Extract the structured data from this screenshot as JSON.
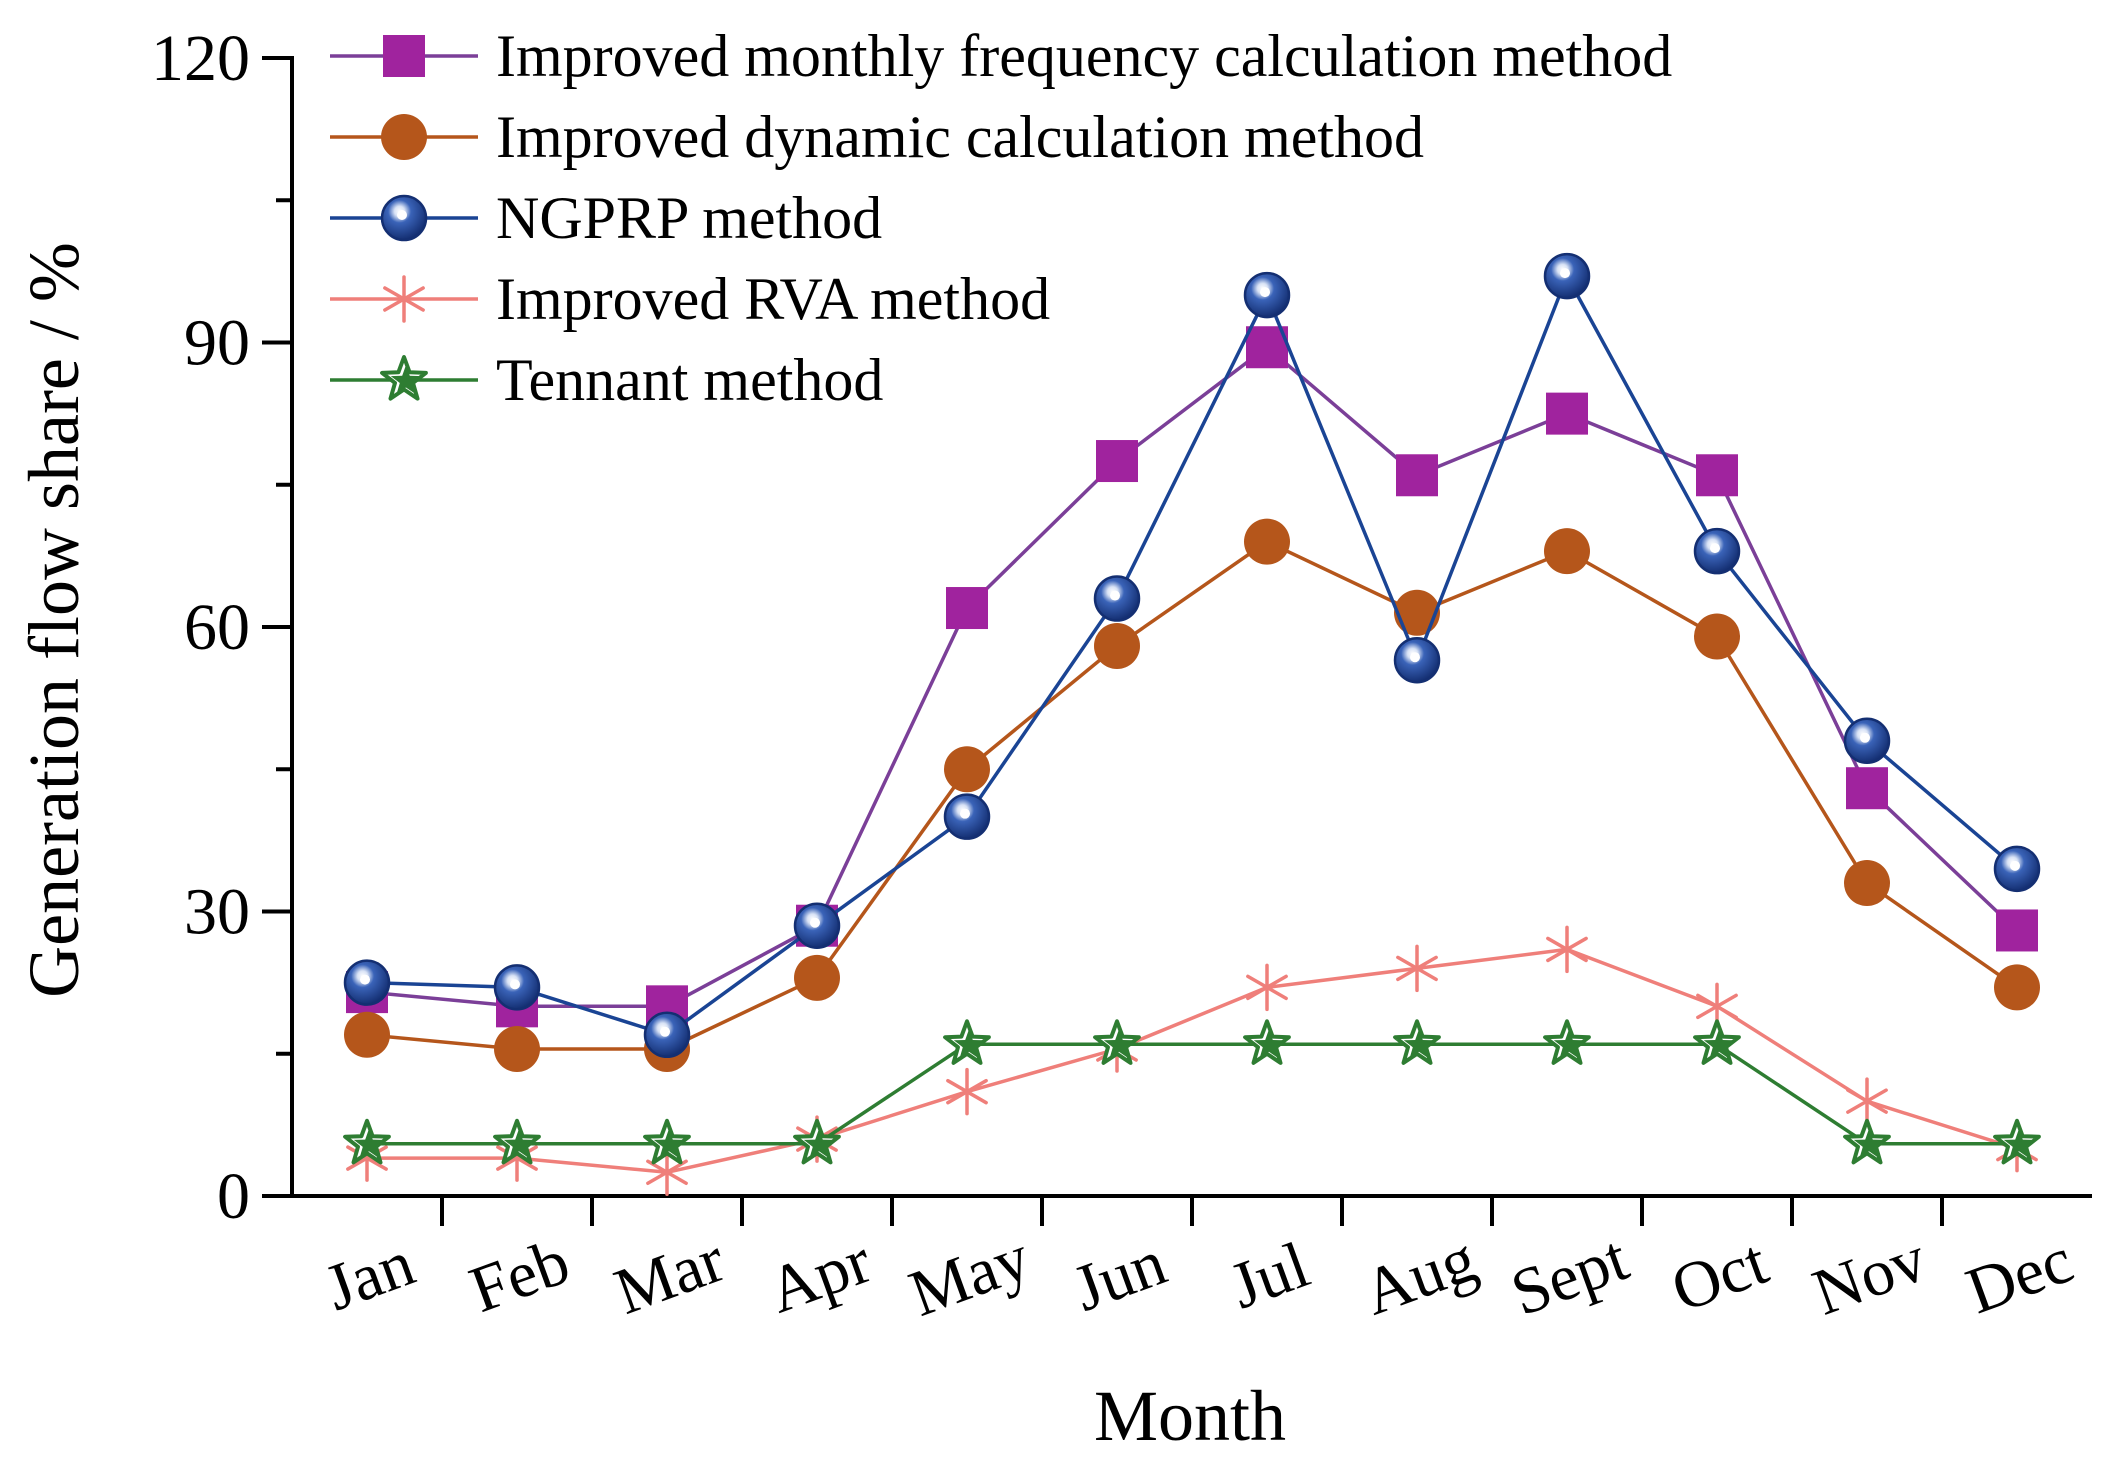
{
  "chart_data": {
    "type": "line",
    "xlabel": "Month",
    "ylabel": "Generation flow share / %",
    "ylim": [
      0,
      120
    ],
    "y_major_ticks": [
      0,
      30,
      60,
      90,
      120
    ],
    "y_minor_ticks": [
      15,
      45,
      75,
      105
    ],
    "y_tick_labels": [
      "0",
      "30",
      "60",
      "90",
      "120"
    ],
    "categories": [
      "Jan",
      "Feb",
      "Mar",
      "Apr",
      "May",
      "Jun",
      "Jul",
      "Aug",
      "Sept",
      "Oct",
      "Nov",
      "Dec"
    ],
    "grid": false,
    "legend_position": "top-left",
    "series": [
      {
        "name": "Improved monthly frequency calculation method",
        "marker": "square",
        "color": "#7b3f98",
        "marker_color": "#a0239e",
        "values": [
          21.5,
          20,
          20,
          28.5,
          62,
          77.5,
          89.5,
          76,
          82.5,
          76,
          43,
          28
        ]
      },
      {
        "name": "Improved dynamic calculation method",
        "marker": "circle",
        "color": "#b5561b",
        "marker_color": "#b5561b",
        "values": [
          17,
          15.5,
          15.5,
          23,
          45,
          58,
          69,
          61.5,
          68,
          59,
          33,
          22
        ]
      },
      {
        "name": "NGPRP method",
        "marker": "sphere",
        "color": "#1a4494",
        "marker_color": "#1a4494",
        "values": [
          22.5,
          22,
          17,
          28.5,
          40,
          63,
          95,
          56.5,
          97,
          68,
          48,
          34.5
        ]
      },
      {
        "name": "Improved RVA method",
        "marker": "asterisk",
        "color": "#ef7f7a",
        "marker_color": "#ef7f7a",
        "values": [
          4,
          4,
          2.5,
          6,
          11,
          15.5,
          22,
          24,
          26,
          20,
          10,
          5
        ]
      },
      {
        "name": "Tennant method",
        "marker": "star",
        "color": "#2e7d32",
        "marker_color": "#2e7d32",
        "values": [
          5.5,
          5.5,
          5.5,
          5.5,
          16,
          16,
          16,
          16,
          16,
          16,
          5.5,
          5.5
        ]
      }
    ]
  }
}
